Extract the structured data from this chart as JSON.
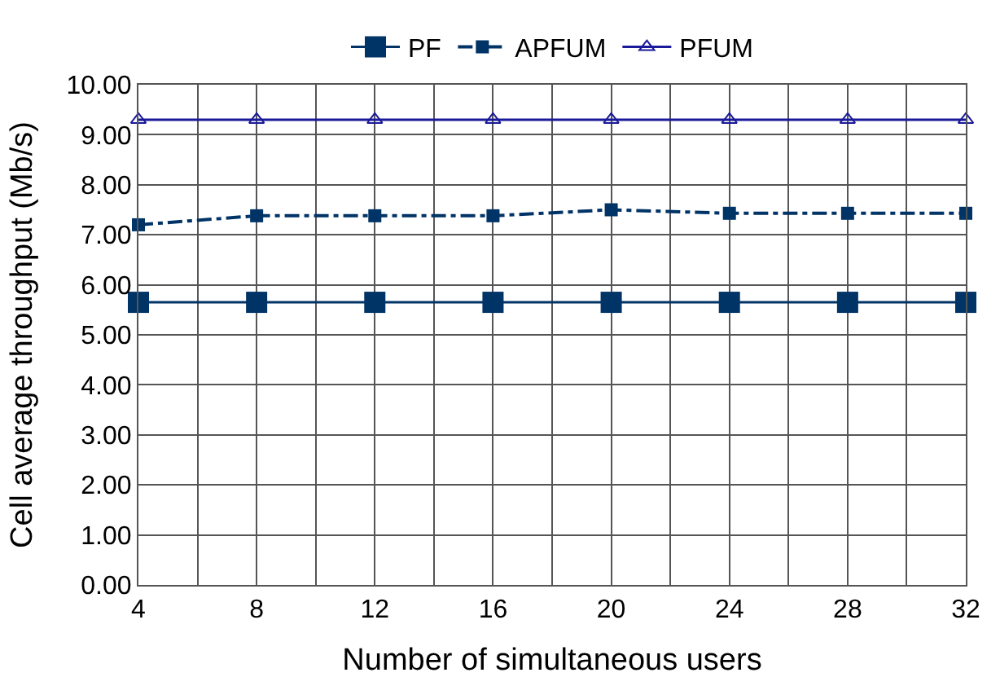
{
  "chart_data": {
    "type": "line",
    "xlabel": "Number of simultaneous users",
    "ylabel": "Cell average throughput (Mb/s)",
    "x": [
      4,
      8,
      12,
      16,
      20,
      24,
      28,
      32
    ],
    "series": [
      {
        "name": "PF",
        "color": "#003366",
        "marker": "square",
        "line_style": "solid",
        "values": [
          5.65,
          5.65,
          5.65,
          5.65,
          5.65,
          5.65,
          5.65,
          5.65
        ]
      },
      {
        "name": "APFUM",
        "color": "#003366",
        "marker": "square",
        "line_style": "dashdot",
        "values": [
          7.2,
          7.38,
          7.38,
          7.38,
          7.5,
          7.43,
          7.43,
          7.43
        ]
      },
      {
        "name": "PFUM",
        "color": "#1a1a9a",
        "marker": "triangle",
        "line_style": "solid",
        "values": [
          9.3,
          9.3,
          9.3,
          9.3,
          9.3,
          9.3,
          9.3,
          9.3
        ]
      }
    ],
    "xlim": [
      4,
      32
    ],
    "xticks": [
      4,
      {
        "value": 6,
        "label": null
      },
      8,
      {
        "value": 10,
        "label": null
      },
      12,
      {
        "value": 14,
        "label": null
      },
      16,
      {
        "value": 18,
        "label": null
      },
      20,
      {
        "value": 22,
        "label": null
      },
      24,
      {
        "value": 26,
        "label": null
      },
      28,
      {
        "value": 30,
        "label": null
      },
      32
    ],
    "ylim": [
      0,
      10
    ],
    "yticks": [
      {
        "value": 0,
        "label": "0.00"
      },
      {
        "value": 1,
        "label": "1.00"
      },
      {
        "value": 2,
        "label": "2.00"
      },
      {
        "value": 3,
        "label": "3.00"
      },
      {
        "value": 4,
        "label": "4.00"
      },
      {
        "value": 5,
        "label": "5.00"
      },
      {
        "value": 6,
        "label": "6.00"
      },
      {
        "value": 7,
        "label": "7.00"
      },
      {
        "value": 8,
        "label": "8.00"
      },
      {
        "value": 9,
        "label": "9.00"
      },
      {
        "value": 10,
        "label": "10.00"
      }
    ],
    "grid": true,
    "legend": "top"
  }
}
